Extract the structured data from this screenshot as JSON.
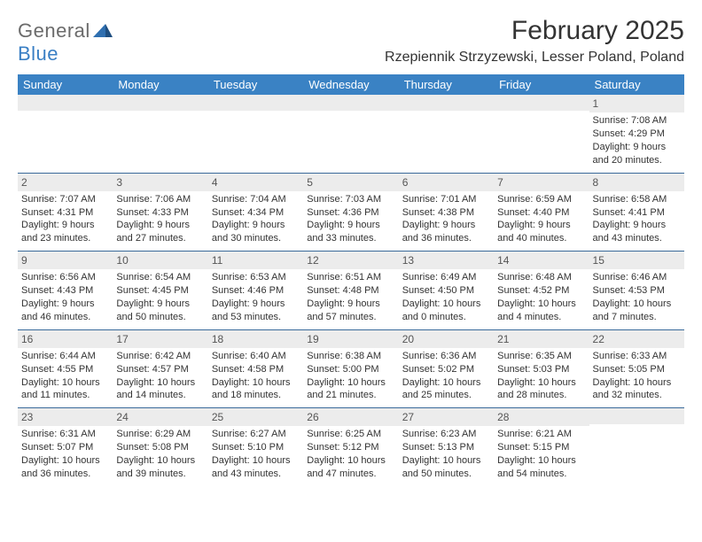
{
  "logo": {
    "word1": "General",
    "word2": "Blue",
    "accent_color": "#3a7fc4",
    "muted_color": "#6b6b6b"
  },
  "title": "February 2025",
  "location": "Rzepiennik Strzyzewski, Lesser Poland, Poland",
  "colors": {
    "header_bg": "#3a82c4",
    "header_text": "#ffffff",
    "row_divider": "#3a6a9a",
    "daynum_bg": "#ececec",
    "text": "#333333"
  },
  "typography": {
    "title_fontsize": 30,
    "location_fontsize": 16,
    "dow_fontsize": 13,
    "daynum_fontsize": 12,
    "body_fontsize": 11
  },
  "day_labels": [
    "Sunday",
    "Monday",
    "Tuesday",
    "Wednesday",
    "Thursday",
    "Friday",
    "Saturday"
  ],
  "weeks": [
    [
      {
        "n": "",
        "sr": "",
        "ss": "",
        "dl": ""
      },
      {
        "n": "",
        "sr": "",
        "ss": "",
        "dl": ""
      },
      {
        "n": "",
        "sr": "",
        "ss": "",
        "dl": ""
      },
      {
        "n": "",
        "sr": "",
        "ss": "",
        "dl": ""
      },
      {
        "n": "",
        "sr": "",
        "ss": "",
        "dl": ""
      },
      {
        "n": "",
        "sr": "",
        "ss": "",
        "dl": ""
      },
      {
        "n": "1",
        "sr": "Sunrise: 7:08 AM",
        "ss": "Sunset: 4:29 PM",
        "dl": "Daylight: 9 hours and 20 minutes."
      }
    ],
    [
      {
        "n": "2",
        "sr": "Sunrise: 7:07 AM",
        "ss": "Sunset: 4:31 PM",
        "dl": "Daylight: 9 hours and 23 minutes."
      },
      {
        "n": "3",
        "sr": "Sunrise: 7:06 AM",
        "ss": "Sunset: 4:33 PM",
        "dl": "Daylight: 9 hours and 27 minutes."
      },
      {
        "n": "4",
        "sr": "Sunrise: 7:04 AM",
        "ss": "Sunset: 4:34 PM",
        "dl": "Daylight: 9 hours and 30 minutes."
      },
      {
        "n": "5",
        "sr": "Sunrise: 7:03 AM",
        "ss": "Sunset: 4:36 PM",
        "dl": "Daylight: 9 hours and 33 minutes."
      },
      {
        "n": "6",
        "sr": "Sunrise: 7:01 AM",
        "ss": "Sunset: 4:38 PM",
        "dl": "Daylight: 9 hours and 36 minutes."
      },
      {
        "n": "7",
        "sr": "Sunrise: 6:59 AM",
        "ss": "Sunset: 4:40 PM",
        "dl": "Daylight: 9 hours and 40 minutes."
      },
      {
        "n": "8",
        "sr": "Sunrise: 6:58 AM",
        "ss": "Sunset: 4:41 PM",
        "dl": "Daylight: 9 hours and 43 minutes."
      }
    ],
    [
      {
        "n": "9",
        "sr": "Sunrise: 6:56 AM",
        "ss": "Sunset: 4:43 PM",
        "dl": "Daylight: 9 hours and 46 minutes."
      },
      {
        "n": "10",
        "sr": "Sunrise: 6:54 AM",
        "ss": "Sunset: 4:45 PM",
        "dl": "Daylight: 9 hours and 50 minutes."
      },
      {
        "n": "11",
        "sr": "Sunrise: 6:53 AM",
        "ss": "Sunset: 4:46 PM",
        "dl": "Daylight: 9 hours and 53 minutes."
      },
      {
        "n": "12",
        "sr": "Sunrise: 6:51 AM",
        "ss": "Sunset: 4:48 PM",
        "dl": "Daylight: 9 hours and 57 minutes."
      },
      {
        "n": "13",
        "sr": "Sunrise: 6:49 AM",
        "ss": "Sunset: 4:50 PM",
        "dl": "Daylight: 10 hours and 0 minutes."
      },
      {
        "n": "14",
        "sr": "Sunrise: 6:48 AM",
        "ss": "Sunset: 4:52 PM",
        "dl": "Daylight: 10 hours and 4 minutes."
      },
      {
        "n": "15",
        "sr": "Sunrise: 6:46 AM",
        "ss": "Sunset: 4:53 PM",
        "dl": "Daylight: 10 hours and 7 minutes."
      }
    ],
    [
      {
        "n": "16",
        "sr": "Sunrise: 6:44 AM",
        "ss": "Sunset: 4:55 PM",
        "dl": "Daylight: 10 hours and 11 minutes."
      },
      {
        "n": "17",
        "sr": "Sunrise: 6:42 AM",
        "ss": "Sunset: 4:57 PM",
        "dl": "Daylight: 10 hours and 14 minutes."
      },
      {
        "n": "18",
        "sr": "Sunrise: 6:40 AM",
        "ss": "Sunset: 4:58 PM",
        "dl": "Daylight: 10 hours and 18 minutes."
      },
      {
        "n": "19",
        "sr": "Sunrise: 6:38 AM",
        "ss": "Sunset: 5:00 PM",
        "dl": "Daylight: 10 hours and 21 minutes."
      },
      {
        "n": "20",
        "sr": "Sunrise: 6:36 AM",
        "ss": "Sunset: 5:02 PM",
        "dl": "Daylight: 10 hours and 25 minutes."
      },
      {
        "n": "21",
        "sr": "Sunrise: 6:35 AM",
        "ss": "Sunset: 5:03 PM",
        "dl": "Daylight: 10 hours and 28 minutes."
      },
      {
        "n": "22",
        "sr": "Sunrise: 6:33 AM",
        "ss": "Sunset: 5:05 PM",
        "dl": "Daylight: 10 hours and 32 minutes."
      }
    ],
    [
      {
        "n": "23",
        "sr": "Sunrise: 6:31 AM",
        "ss": "Sunset: 5:07 PM",
        "dl": "Daylight: 10 hours and 36 minutes."
      },
      {
        "n": "24",
        "sr": "Sunrise: 6:29 AM",
        "ss": "Sunset: 5:08 PM",
        "dl": "Daylight: 10 hours and 39 minutes."
      },
      {
        "n": "25",
        "sr": "Sunrise: 6:27 AM",
        "ss": "Sunset: 5:10 PM",
        "dl": "Daylight: 10 hours and 43 minutes."
      },
      {
        "n": "26",
        "sr": "Sunrise: 6:25 AM",
        "ss": "Sunset: 5:12 PM",
        "dl": "Daylight: 10 hours and 47 minutes."
      },
      {
        "n": "27",
        "sr": "Sunrise: 6:23 AM",
        "ss": "Sunset: 5:13 PM",
        "dl": "Daylight: 10 hours and 50 minutes."
      },
      {
        "n": "28",
        "sr": "Sunrise: 6:21 AM",
        "ss": "Sunset: 5:15 PM",
        "dl": "Daylight: 10 hours and 54 minutes."
      },
      {
        "n": "",
        "sr": "",
        "ss": "",
        "dl": ""
      }
    ]
  ]
}
